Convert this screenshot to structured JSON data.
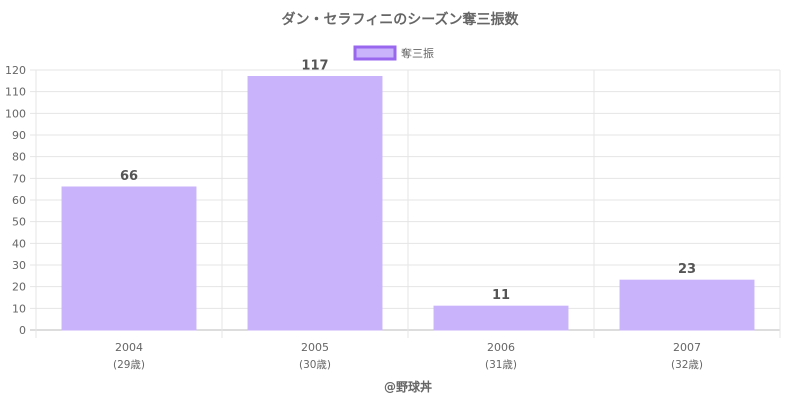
{
  "chart_data": {
    "type": "bar",
    "title": "ダン・セラフィニのシーズン奪三振数",
    "categories": [
      "2004",
      "2005",
      "2006",
      "2007"
    ],
    "sublabels": [
      "(29歳)",
      "(30歳)",
      "(31歳)",
      "(32歳)"
    ],
    "series": [
      {
        "name": "奪三振",
        "values": [
          66,
          117,
          11,
          23
        ]
      }
    ],
    "ylim": [
      0,
      120
    ],
    "ytick_step": 10,
    "grid": true,
    "legend_position": "top-center",
    "colors": {
      "bar_fill": "#c9b3fb",
      "bar_stroke": "#c9b3fb",
      "legend_stroke": "#9966ee"
    },
    "credit": "@野球丼"
  }
}
